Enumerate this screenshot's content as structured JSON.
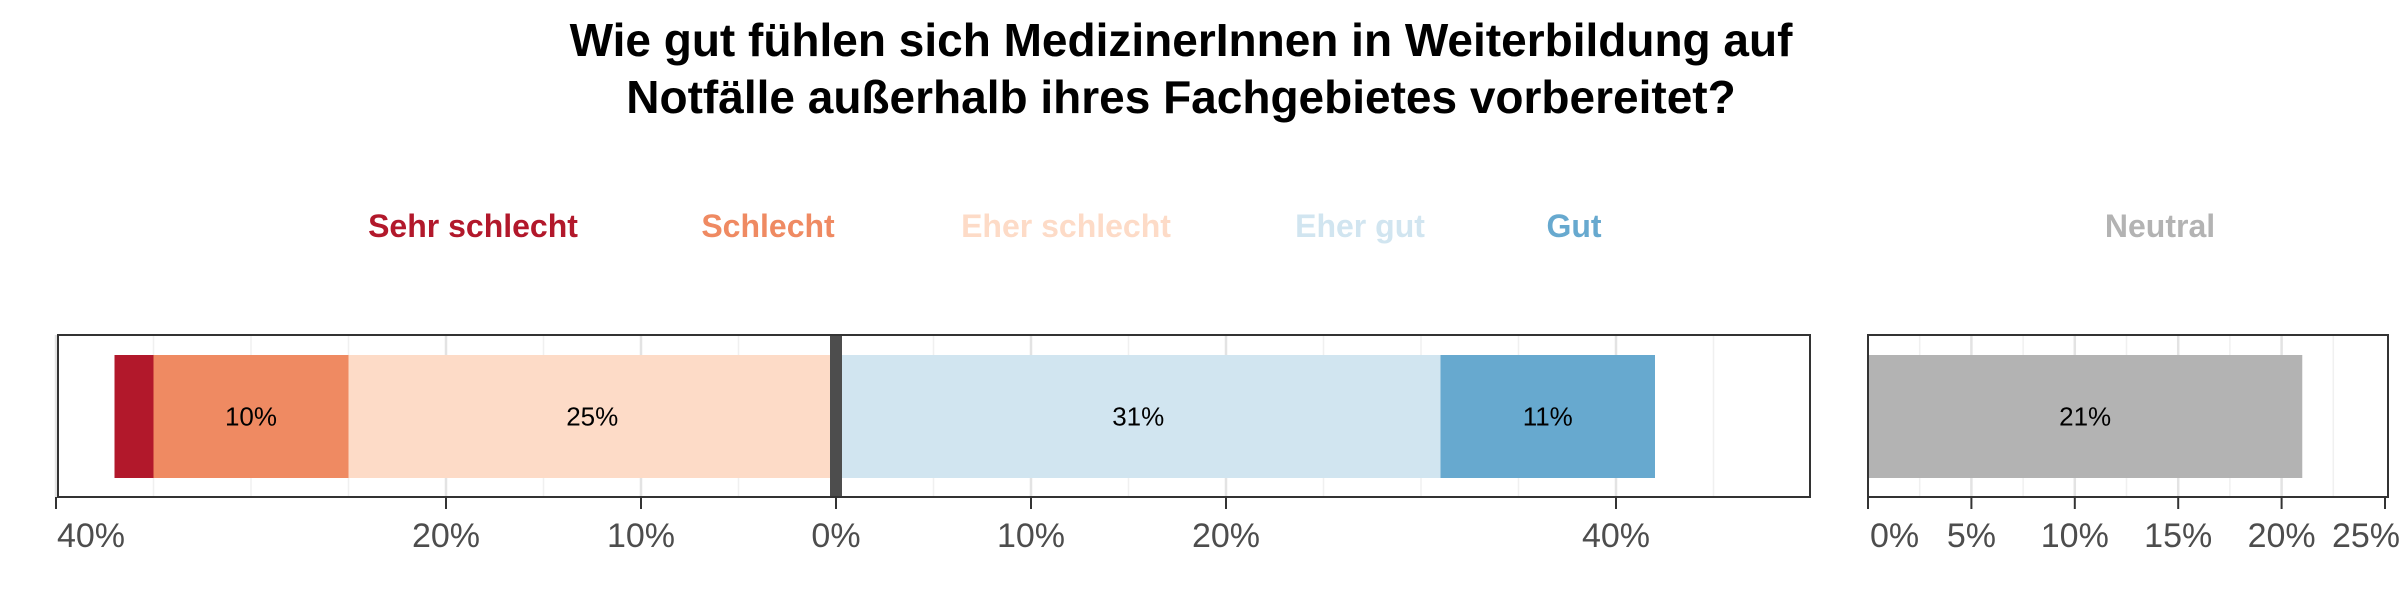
{
  "chart_data": [
    {
      "type": "bar",
      "orientation": "horizontal",
      "stacked": "diverging",
      "title": "Wie gut fühlen sich MedizinerInnen in Weiterbildung auf Notfälle außerhalb ihres Fachgebietes vorbereitet?",
      "title_lines": [
        "Wie gut fühlen sich MedizinerInnen in Weiterbildung auf",
        "Notfälle außerhalb ihres Fachgebietes vorbereitet?"
      ],
      "legend_position": "top",
      "grid": true,
      "xlim": [
        -40,
        50
      ],
      "x_ticks": [
        {
          "value": -40,
          "label": "40%"
        },
        {
          "value": -20,
          "label": "20%"
        },
        {
          "value": -10,
          "label": "10%"
        },
        {
          "value": 0,
          "label": "0%"
        },
        {
          "value": 10,
          "label": "10%"
        },
        {
          "value": 20,
          "label": "20%"
        },
        {
          "value": 40,
          "label": "40%"
        }
      ],
      "series": [
        {
          "name": "Sehr schlecht",
          "value": -2,
          "label": "",
          "color": "#b2182b"
        },
        {
          "name": "Schlecht",
          "value": -10,
          "label": "10%",
          "color": "#ef8a62"
        },
        {
          "name": "Eher schlecht",
          "value": -25,
          "label": "25%",
          "color": "#fddbc7"
        },
        {
          "name": "Eher gut",
          "value": 31,
          "label": "31%",
          "color": "#d1e5f0"
        },
        {
          "name": "Gut",
          "value": 11,
          "label": "11%",
          "color": "#67a9cf"
        }
      ]
    },
    {
      "type": "bar",
      "orientation": "horizontal",
      "xlim": [
        0,
        25
      ],
      "grid": true,
      "x_ticks": [
        {
          "value": 0,
          "label": "0%"
        },
        {
          "value": 5,
          "label": "5%"
        },
        {
          "value": 10,
          "label": "10%"
        },
        {
          "value": 15,
          "label": "15%"
        },
        {
          "value": 20,
          "label": "20%"
        },
        {
          "value": 25,
          "label": "25%"
        }
      ],
      "series": [
        {
          "name": "Neutral",
          "value": 21,
          "label": "21%",
          "color": "#b3b3b3"
        }
      ]
    }
  ]
}
